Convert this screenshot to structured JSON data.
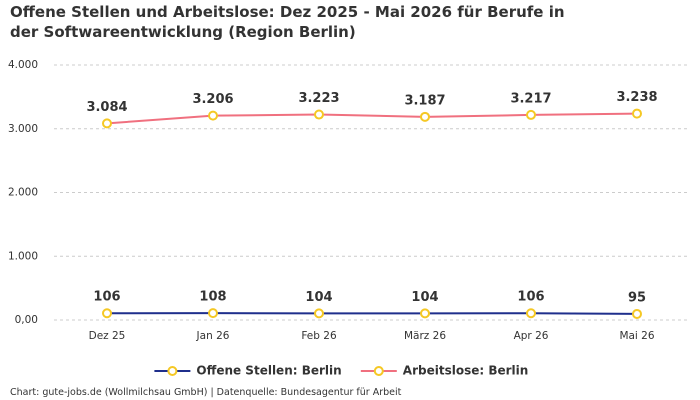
{
  "chart_data": {
    "type": "line",
    "title": "Offene Stellen und Arbeitslose: Dez 2025 - Mai 2026 für Berufe in der Softwareentwicklung (Region Berlin)",
    "categories": [
      "Dez 25",
      "Jan 26",
      "Feb 26",
      "März 26",
      "Apr 26",
      "Mai 26"
    ],
    "series": [
      {
        "name": "Offene Stellen: Berlin",
        "color": "#1f2f8c",
        "values": [
          106,
          108,
          104,
          104,
          106,
          95
        ]
      },
      {
        "name": "Arbeitslose: Berlin",
        "color": "#f0707f",
        "values": [
          3084,
          3206,
          3223,
          3187,
          3217,
          3238
        ],
        "value_labels": [
          "3.084",
          "3.206",
          "3.223",
          "3.187",
          "3.217",
          "3.238"
        ]
      }
    ],
    "marker_color": "#f5c824",
    "ylim": [
      0,
      4000
    ],
    "yticks": [
      {
        "value": 0,
        "label": "0,00"
      },
      {
        "value": 1000,
        "label": "1.000"
      },
      {
        "value": 2000,
        "label": "2.000"
      },
      {
        "value": 3000,
        "label": "3.000"
      },
      {
        "value": 4000,
        "label": "4.000"
      }
    ],
    "grid": true,
    "legend": "bottom",
    "source": "Chart: gute-jobs.de (Wollmilchsau GmbH) | Datenquelle: Bundesagentur für Arbeit"
  }
}
